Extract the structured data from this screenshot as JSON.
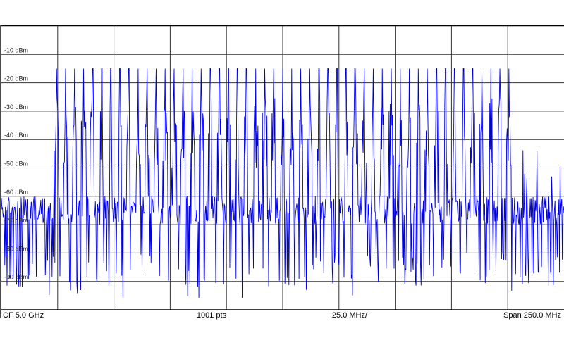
{
  "footer": {
    "center_frequency": "CF 5.0 GHz",
    "points": "1001 pts",
    "division": "25.0 MHz/",
    "span": "Span 250.0 MHz"
  },
  "chart_data": {
    "type": "line",
    "title": "",
    "xlabel": "",
    "ylabel": "",
    "x_unit": "MHz",
    "y_unit": "dBm",
    "center_frequency_ghz": 5.0,
    "span_mhz": 250.0,
    "division_mhz": 25.0,
    "points": 1001,
    "xlim": [
      4875,
      5125
    ],
    "ylim": [
      -100,
      0
    ],
    "y_ticks": [
      {
        "value": -10,
        "label": "-10 dBm"
      },
      {
        "value": -20,
        "label": "-20 dBm"
      },
      {
        "value": -30,
        "label": "-30 dBm"
      },
      {
        "value": -40,
        "label": "-40 dBm"
      },
      {
        "value": -50,
        "label": "-50 dBm"
      },
      {
        "value": -60,
        "label": "-60 dBm"
      },
      {
        "value": -70,
        "label": "-70 dBm"
      },
      {
        "value": -80,
        "label": "-80 dBm"
      },
      {
        "value": -90,
        "label": "-90 dBm"
      }
    ],
    "grid": true,
    "series": [
      {
        "color": "#0000e6",
        "comb": {
          "start_mhz": 4899.5,
          "end_mhz": 5100.5,
          "tone_count": 51,
          "tone_peak_dbm": -15
        },
        "noise_floor_dbm": [
          -60,
          -70
        ],
        "noise_min_dbm": -98,
        "out_of_band_spurs_dbm": [
          -43,
          -55
        ]
      }
    ]
  }
}
